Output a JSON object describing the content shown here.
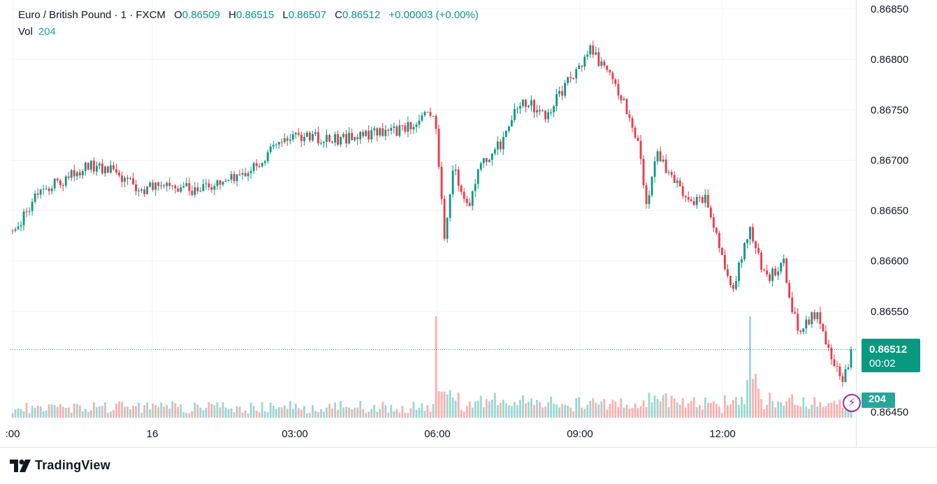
{
  "legend": {
    "symbol": "Euro / British Pound · 1 · FXCM",
    "o_label": "O",
    "o_value": "0.86509",
    "h_label": "H",
    "h_value": "0.86515",
    "l_label": "L",
    "l_value": "0.86507",
    "c_label": "C",
    "c_value": "0.86512",
    "change": "+0.00003 (+0.00%)",
    "vol_label": "Vol",
    "vol_value": "204"
  },
  "price_tag": {
    "price": "0.86512",
    "countdown": "00:02"
  },
  "volume_tag": "204",
  "branding": "TradingView",
  "colors": {
    "up": "#089981",
    "down": "#f23645",
    "vol_up": "#26a69a",
    "vol_down": "#ef5350",
    "grid": "#f0f3fa"
  },
  "chart_data": {
    "type": "candlestick",
    "title": "Euro / British Pound · 1 · FXCM",
    "ylim": [
      0.8645,
      0.8685
    ],
    "y_ticks": [
      "0.86850",
      "0.86800",
      "0.86750",
      "0.86700",
      "0.86650",
      "0.86600",
      "0.86550",
      "0.86450"
    ],
    "x_ticks": [
      ":00",
      "16",
      "03:00",
      "06:00",
      "09:00",
      "12:00"
    ],
    "last_price": 0.86512,
    "price_path": [
      [
        0,
        0.8663
      ],
      [
        2,
        0.8665
      ],
      [
        3,
        0.8667
      ],
      [
        6,
        0.8668
      ],
      [
        9,
        0.86695
      ],
      [
        12,
        0.8669
      ],
      [
        15,
        0.8667
      ],
      [
        18,
        0.86675
      ],
      [
        22,
        0.8667
      ],
      [
        27,
        0.86685
      ],
      [
        30,
        0.86705
      ],
      [
        33,
        0.86725
      ],
      [
        38,
        0.8672
      ],
      [
        42,
        0.86725
      ],
      [
        46,
        0.8673
      ],
      [
        49,
        0.86745
      ],
      [
        50,
        0.86735
      ],
      [
        51,
        0.8662
      ],
      [
        52,
        0.86695
      ],
      [
        54,
        0.8665
      ],
      [
        55,
        0.86695
      ],
      [
        58,
        0.8672
      ],
      [
        60,
        0.8676
      ],
      [
        63,
        0.86745
      ],
      [
        65,
        0.8677
      ],
      [
        67,
        0.86795
      ],
      [
        68,
        0.8681
      ],
      [
        70,
        0.8679
      ],
      [
        72,
        0.8676
      ],
      [
        74,
        0.8671
      ],
      [
        75,
        0.8665
      ],
      [
        76,
        0.8671
      ],
      [
        78,
        0.8668
      ],
      [
        80,
        0.8666
      ],
      [
        82,
        0.8666
      ],
      [
        84,
        0.866
      ],
      [
        85,
        0.8657
      ],
      [
        86,
        0.866
      ],
      [
        87,
        0.8663
      ],
      [
        89,
        0.8658
      ],
      [
        91,
        0.866
      ],
      [
        92,
        0.8655
      ],
      [
        93,
        0.8653
      ],
      [
        95,
        0.8655
      ],
      [
        96,
        0.8652
      ],
      [
        98,
        0.8648
      ],
      [
        99,
        0.8651
      ]
    ]
  }
}
